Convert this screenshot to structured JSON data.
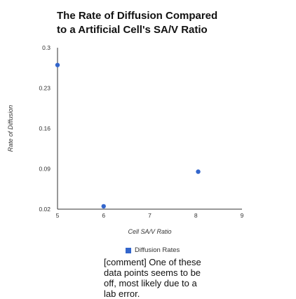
{
  "chart_data": {
    "type": "scatter",
    "title_lines": [
      "The Rate of Diffusion Compared",
      "to a Artificial Cell's SA/V Ratio"
    ],
    "xlabel": "Cell SA/V Ratio",
    "ylabel": "Rate of Diffusion",
    "xlim": [
      5,
      9
    ],
    "ylim": [
      0.02,
      0.3
    ],
    "x_ticks": [
      "5",
      "6",
      "7",
      "8",
      "9"
    ],
    "y_ticks": [
      "0.02",
      "0.09",
      "0.16",
      "0.23",
      "0.3"
    ],
    "series": [
      {
        "name": "Diffusion Rates",
        "color": "#3366cc",
        "points": [
          {
            "x": 5.0,
            "y": 0.27
          },
          {
            "x": 6.0,
            "y": 0.025
          },
          {
            "x": 8.05,
            "y": 0.085
          }
        ]
      }
    ],
    "legend_position": "bottom",
    "grid": false
  },
  "comment": "[comment] One of these data points seems to be off, most likely due to a lab error."
}
